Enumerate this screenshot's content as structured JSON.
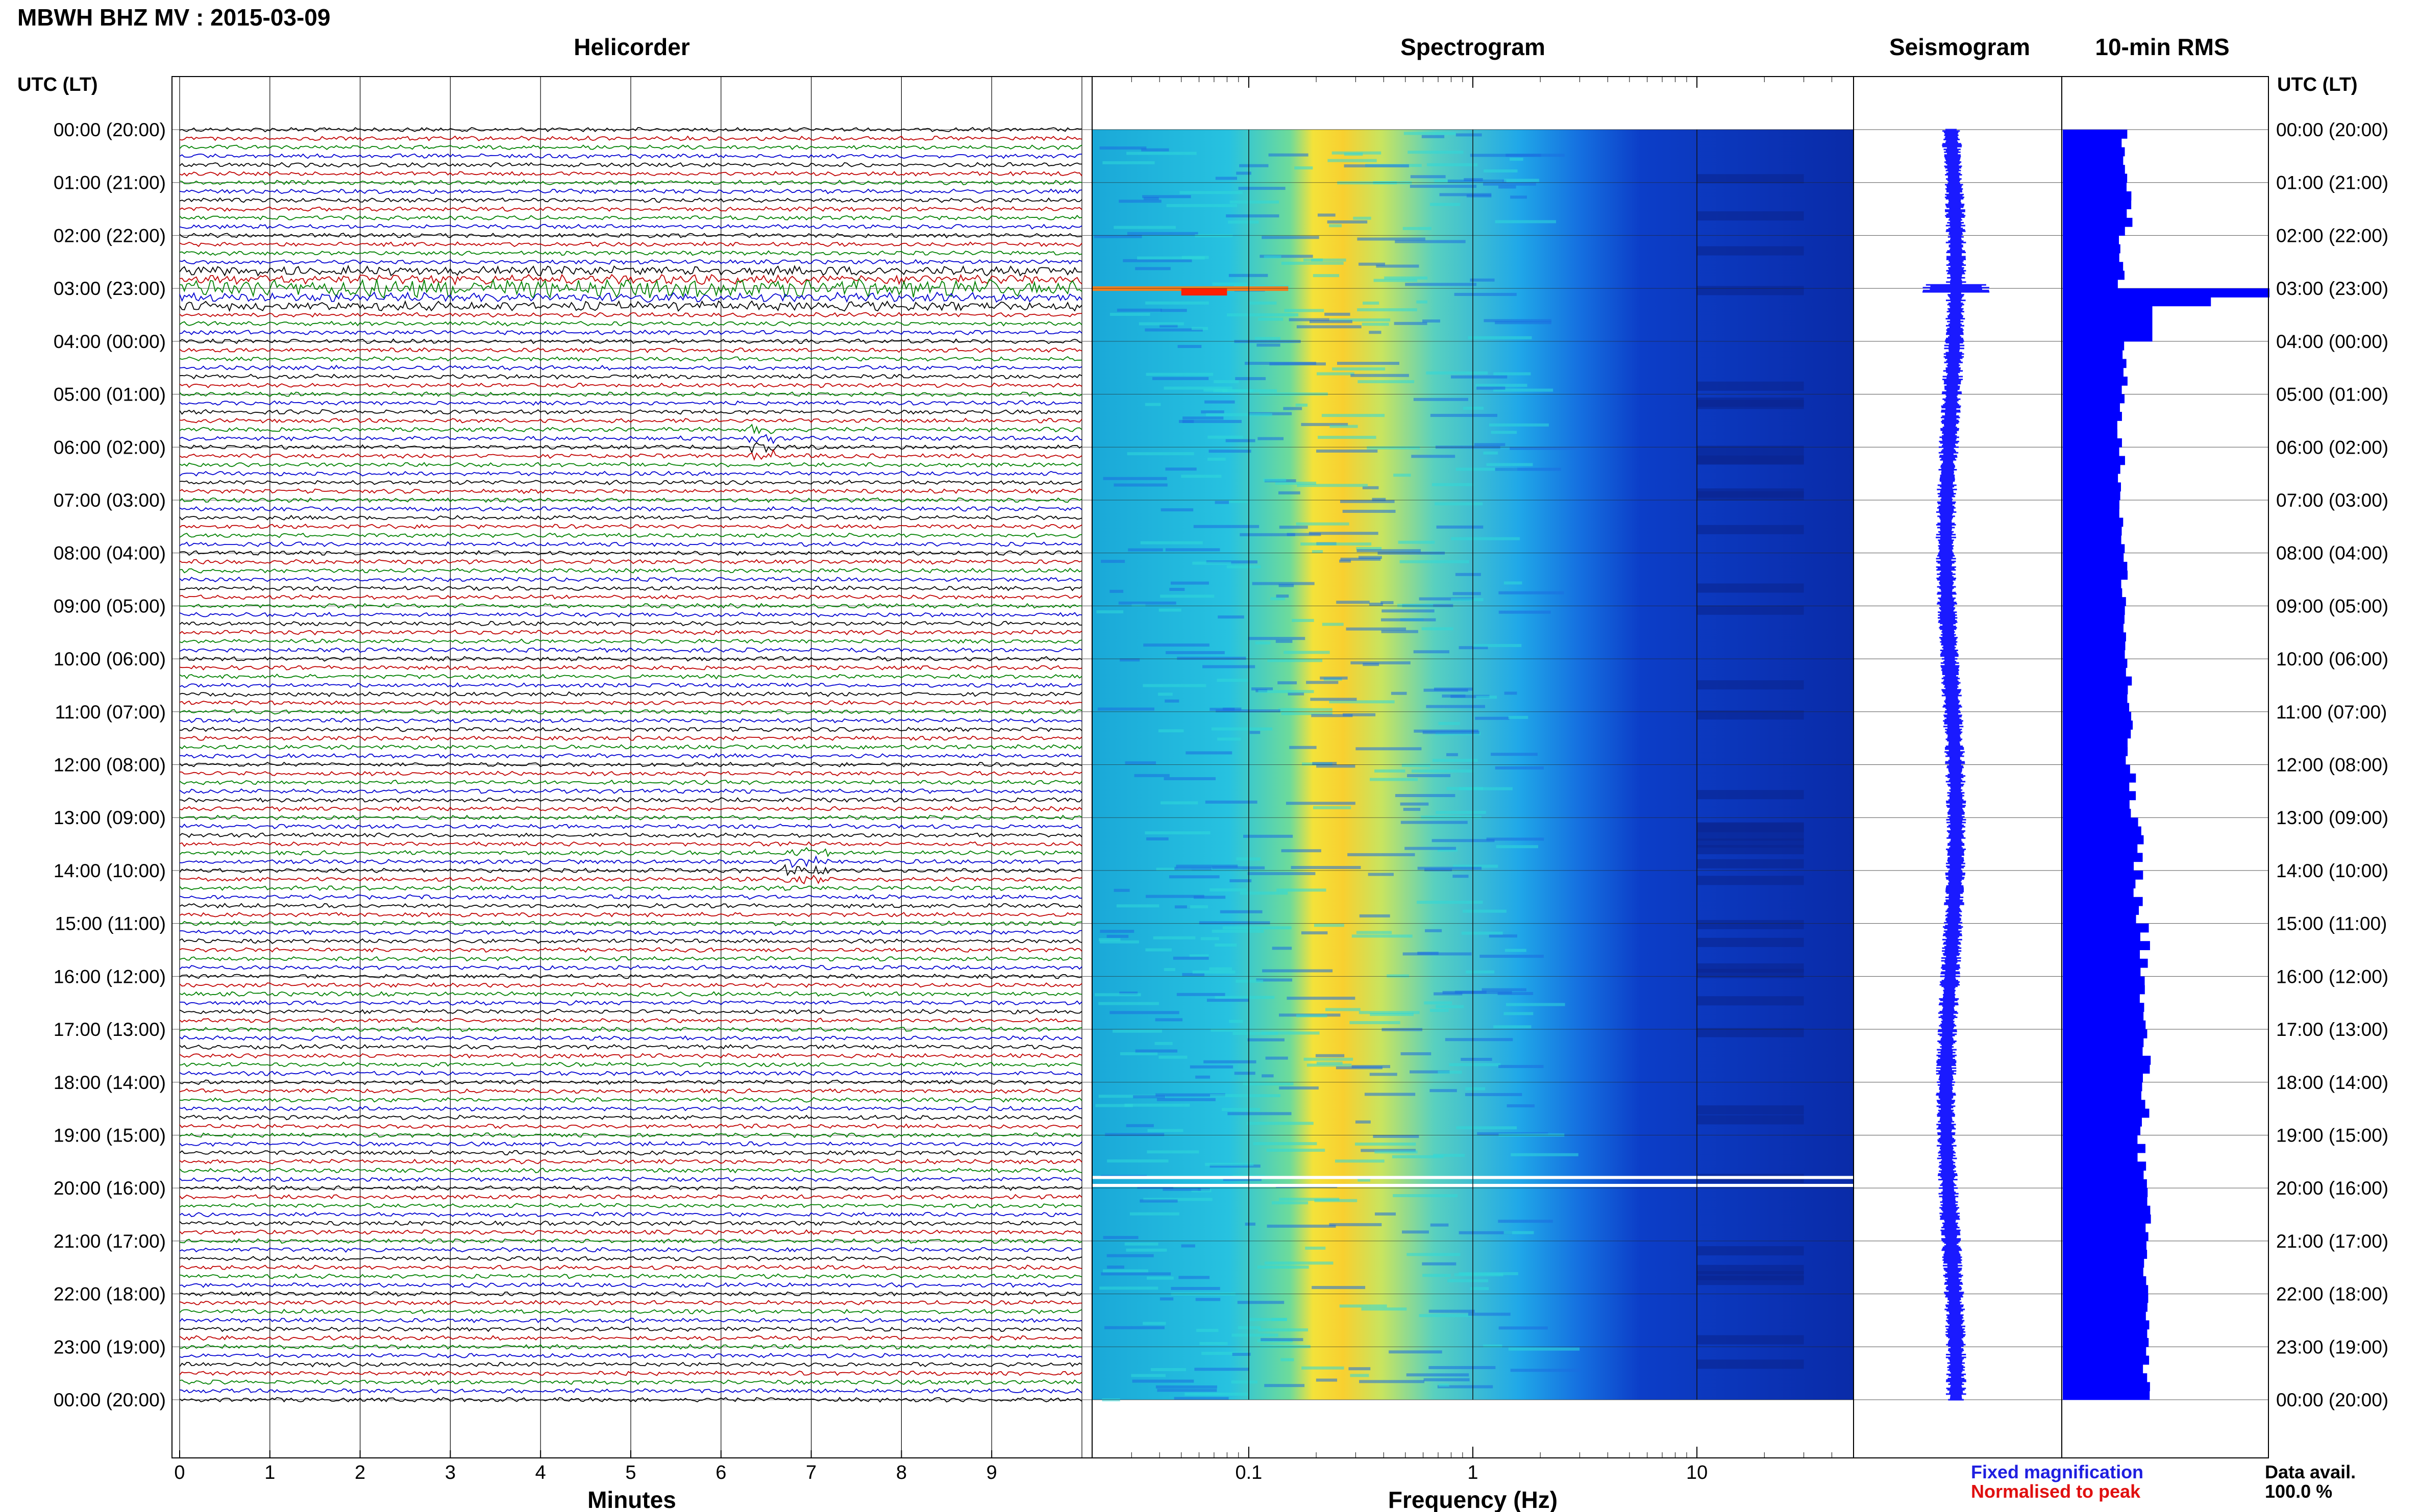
{
  "page_title": "MBWH BHZ MV : 2015-03-09",
  "headers": {
    "helicorder": "Helicorder",
    "spectrogram": "Spectrogram",
    "seismogram": "Seismogram",
    "rms": "10-min RMS"
  },
  "axis": {
    "left_label": "UTC (LT)",
    "right_label": "UTC (LT)",
    "helicorder_xlabel": "Minutes",
    "spectrogram_xlabel": "Frequency (Hz)"
  },
  "legend": {
    "fixed": "Fixed magnification",
    "normalised": "Normalised to peak",
    "fixed_color": "#1f1fe0",
    "normalised_color": "#e01010"
  },
  "data_avail": {
    "label": "Data avail.",
    "value": "100.0 %"
  },
  "colors": {
    "trace_cycle": [
      "#000000",
      "#c00000",
      "#008000",
      "#0000d0"
    ],
    "seismogram": "#1a1aff",
    "rms_bar": "#0000ff",
    "spectro_low": "#0a2fa8",
    "spectro_mid": "#27c8e0",
    "spectro_high": "#f5e43a"
  },
  "chart_data": [
    {
      "type": "line",
      "title": "Helicorder",
      "xlabel": "Minutes",
      "xticks": [
        "0",
        "1",
        "2",
        "3",
        "4",
        "5",
        "6",
        "7",
        "8",
        "9"
      ],
      "xlim": [
        0,
        10
      ],
      "rows_per_hour": 6,
      "yticks": [
        "00:00 (20:00)",
        "01:00 (21:00)",
        "02:00 (22:00)",
        "03:00 (23:00)",
        "04:00 (00:00)",
        "05:00 (01:00)",
        "06:00 (02:00)",
        "07:00 (03:00)",
        "08:00 (04:00)",
        "09:00 (05:00)",
        "10:00 (06:00)",
        "11:00 (07:00)",
        "12:00 (08:00)",
        "13:00 (09:00)",
        "14:00 (10:00)",
        "15:00 (11:00)",
        "16:00 (12:00)",
        "17:00 (13:00)",
        "18:00 (14:00)",
        "19:00 (15:00)",
        "20:00 (16:00)",
        "21:00 (17:00)",
        "22:00 (18:00)",
        "23:00 (19:00)",
        "00:00 (20:00)"
      ],
      "events": [
        {
          "hour": 3.0,
          "minute_start": 0,
          "minute_end": 10,
          "amplitude": "large"
        },
        {
          "hour": 5.9,
          "minute_start": 6.3,
          "minute_end": 6.6,
          "amplitude": "small"
        },
        {
          "hour": 13.9,
          "minute_start": 6.7,
          "minute_end": 7.2,
          "amplitude": "small"
        }
      ]
    },
    {
      "type": "heatmap",
      "title": "Spectrogram",
      "xlabel": "Frequency (Hz)",
      "xscale": "log",
      "xticks": [
        "0.1",
        "1",
        "10"
      ],
      "xlim": [
        0.02,
        50
      ],
      "energy_band_hz": [
        0.2,
        0.5
      ],
      "gaps_hour": [
        19.8,
        19.95
      ]
    },
    {
      "type": "line",
      "title": "Seismogram",
      "note": "24-hour compressed trace"
    },
    {
      "type": "bar",
      "title": "10-min RMS",
      "orientation": "horizontal",
      "hourly_rms": [
        1.8,
        1.9,
        1.7,
        6.0,
        1.8,
        1.7,
        1.7,
        1.7,
        1.8,
        1.8,
        1.9,
        1.9,
        2.0,
        2.2,
        2.2,
        2.4,
        2.3,
        2.4,
        2.4,
        2.3,
        2.4,
        2.4,
        2.5,
        2.4
      ],
      "xlim": [
        0,
        6
      ]
    }
  ]
}
